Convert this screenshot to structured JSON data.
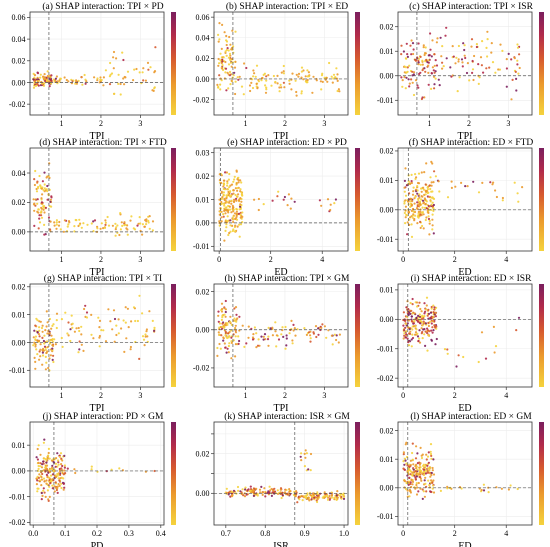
{
  "figure": {
    "colormap": [
      "#f5d33d",
      "#eb9a2d",
      "#d6592f",
      "#b12a4b",
      "#7b1f5e"
    ],
    "zero_line_color": "#555555",
    "grid": true,
    "point_size": "small dots colored by interacting feature value"
  },
  "chart_data": [
    {
      "type": "scatter",
      "title": "(a)  SHAP interaction: TPI × PD",
      "xlabel": "TPI",
      "xlim": [
        0.2,
        3.6
      ],
      "ylim": [
        -0.03,
        0.065
      ],
      "xticks": [
        1,
        2,
        3
      ],
      "yticks": [
        -0.02,
        0.0,
        0.02,
        0.04,
        0.06
      ],
      "ytick_labels": [
        "-0.02",
        "0.00",
        "0.02",
        "0.04",
        "0.06"
      ],
      "vline": 0.68,
      "clusters": [
        {
          "x": [
            0.28,
            0.75
          ],
          "y": [
            -0.008,
            0.012
          ],
          "n": 90,
          "hi": 0.25
        },
        {
          "x": [
            0.8,
            2.0
          ],
          "y": [
            -0.004,
            0.008
          ],
          "n": 40,
          "hi": 0.1
        },
        {
          "x": [
            2.0,
            3.4
          ],
          "y": [
            -0.022,
            0.04
          ],
          "n": 45,
          "hi": 0.08
        }
      ]
    },
    {
      "type": "scatter",
      "title": "(b)  SHAP interaction: TPI × ED",
      "xlabel": "TPI",
      "xlim": [
        0.2,
        3.6
      ],
      "ylim": [
        -0.035,
        0.065
      ],
      "xticks": [
        1,
        2,
        3
      ],
      "yticks": [
        -0.02,
        0.0,
        0.02,
        0.04,
        0.06
      ],
      "ytick_labels": [
        "-0.02",
        "0.00",
        "0.02",
        "0.04",
        "0.06"
      ],
      "vline": 0.68,
      "clusters": [
        {
          "x": [
            0.28,
            0.75
          ],
          "y": [
            -0.028,
            0.06
          ],
          "n": 90,
          "hi": 0.2
        },
        {
          "x": [
            0.8,
            3.4
          ],
          "y": [
            -0.02,
            0.018
          ],
          "n": 110,
          "hi": 0.04
        }
      ]
    },
    {
      "type": "scatter",
      "title": "(c)  SHAP interaction: TPI × ISR",
      "xlabel": "TPI",
      "xlim": [
        0.2,
        3.6
      ],
      "ylim": [
        -0.016,
        0.026
      ],
      "xticks": [
        1,
        2,
        3
      ],
      "yticks": [
        -0.01,
        0.0,
        0.01,
        0.02
      ],
      "ytick_labels": [
        "-0.01",
        "0.00",
        "0.01",
        "0.02"
      ],
      "vline": 0.68,
      "clusters": [
        {
          "x": [
            0.28,
            1.2
          ],
          "y": [
            -0.012,
            0.02
          ],
          "n": 110,
          "hi": 0.5
        },
        {
          "x": [
            1.2,
            3.3
          ],
          "y": [
            -0.013,
            0.024
          ],
          "n": 90,
          "hi": 0.35
        }
      ]
    },
    {
      "type": "scatter",
      "title": "(d)  SHAP interaction: TPI × FTD",
      "xlabel": "TPI",
      "xlim": [
        0.2,
        3.6
      ],
      "ylim": [
        -0.013,
        0.057
      ],
      "xticks": [
        1,
        2,
        3
      ],
      "yticks": [
        0.0,
        0.02,
        0.04
      ],
      "ytick_labels": [
        "0.00",
        "0.02",
        "0.04"
      ],
      "vline": 0.68,
      "clusters": [
        {
          "x": [
            0.28,
            0.75
          ],
          "y": [
            -0.01,
            0.052
          ],
          "n": 90,
          "hi": 0.3
        },
        {
          "x": [
            0.8,
            3.4
          ],
          "y": [
            -0.006,
            0.014
          ],
          "n": 90,
          "hi": 0.08
        }
      ]
    },
    {
      "type": "scatter",
      "title": "(e)  SHAP interaction: ED × PD",
      "xlabel": "ED",
      "xlim": [
        -0.2,
        5.0
      ],
      "ylim": [
        -0.012,
        0.032
      ],
      "xticks": [
        0,
        2,
        4
      ],
      "yticks": [
        -0.01,
        0.0,
        0.01,
        0.02,
        0.03
      ],
      "ytick_labels": [
        "-0.01",
        "0.00",
        "0.01",
        "0.02",
        "0.03"
      ],
      "vline": 0.05,
      "clusters": [
        {
          "x": [
            0.0,
            0.9
          ],
          "y": [
            -0.01,
            0.028
          ],
          "n": 220,
          "hi": 0.04
        },
        {
          "x": [
            1.0,
            4.6
          ],
          "y": [
            0.004,
            0.015
          ],
          "n": 22,
          "hi": 0.35
        }
      ]
    },
    {
      "type": "scatter",
      "title": "(f)  SHAP interaction: ED × FTD",
      "xlabel": "ED",
      "xlim": [
        -0.2,
        5.0
      ],
      "ylim": [
        -0.014,
        0.021
      ],
      "xticks": [
        0,
        2,
        4
      ],
      "yticks": [
        -0.01,
        0.0,
        0.01,
        0.02
      ],
      "ytick_labels": [
        "-0.01",
        "0.00",
        "0.01",
        "0.02"
      ],
      "vline": 0.2,
      "clusters": [
        {
          "x": [
            0.05,
            1.2
          ],
          "y": [
            -0.012,
            0.018
          ],
          "n": 220,
          "hi": 0.18
        },
        {
          "x": [
            1.2,
            4.7
          ],
          "y": [
            0.0,
            0.015
          ],
          "n": 25,
          "hi": 0.1
        }
      ]
    },
    {
      "type": "scatter",
      "title": "(g)  SHAP interaction: TPI × TI",
      "xlabel": "TPI",
      "xlim": [
        0.2,
        3.6
      ],
      "ylim": [
        -0.016,
        0.021
      ],
      "xticks": [
        1,
        2,
        3
      ],
      "yticks": [
        -0.01,
        0.0,
        0.01,
        0.02
      ],
      "ytick_labels": [
        "-0.01",
        "0.00",
        "0.01",
        "0.02"
      ],
      "vline": 0.68,
      "clusters": [
        {
          "x": [
            0.28,
            0.8
          ],
          "y": [
            -0.014,
            0.014
          ],
          "n": 100,
          "hi": 0.2
        },
        {
          "x": [
            0.8,
            3.4
          ],
          "y": [
            -0.008,
            0.018
          ],
          "n": 90,
          "hi": 0.1
        }
      ]
    },
    {
      "type": "scatter",
      "title": "(h)  SHAP interaction: TPI × GM",
      "xlabel": "TPI",
      "xlim": [
        0.2,
        3.6
      ],
      "ylim": [
        -0.03,
        0.024
      ],
      "xticks": [
        1,
        2,
        3
      ],
      "yticks": [
        -0.02,
        0.0,
        0.02
      ],
      "ytick_labels": [
        "-0.02",
        "0.00",
        "0.02"
      ],
      "vline": 0.68,
      "clusters": [
        {
          "x": [
            0.28,
            0.8
          ],
          "y": [
            -0.02,
            0.02
          ],
          "n": 100,
          "hi": 0.25
        },
        {
          "x": [
            0.8,
            3.4
          ],
          "y": [
            -0.014,
            0.01
          ],
          "n": 90,
          "hi": 0.3
        }
      ]
    },
    {
      "type": "scatter",
      "title": "(i)  SHAP interaction: ED × ISR",
      "xlabel": "ED",
      "xlim": [
        -0.2,
        5.0
      ],
      "ylim": [
        -0.023,
        0.012
      ],
      "xticks": [
        0,
        2,
        4
      ],
      "yticks": [
        -0.02,
        -0.01,
        0.0,
        0.01
      ],
      "ytick_labels": [
        "-0.02",
        "-0.01",
        "0.00",
        "0.01"
      ],
      "vline": 0.18,
      "clusters": [
        {
          "x": [
            0.0,
            1.3
          ],
          "y": [
            -0.012,
            0.01
          ],
          "n": 220,
          "hi": 0.55
        },
        {
          "x": [
            1.3,
            4.6
          ],
          "y": [
            -0.02,
            0.003
          ],
          "n": 15,
          "hi": 0.4
        }
      ]
    },
    {
      "type": "scatter",
      "title": "(j)  SHAP interaction: PD × GM",
      "xlabel": "PD",
      "xlim": [
        -0.01,
        0.41
      ],
      "ylim": [
        -0.021,
        0.019
      ],
      "xticks": [
        0.0,
        0.1,
        0.2,
        0.3,
        0.4
      ],
      "yticks": [
        -0.02,
        -0.01,
        0.0,
        0.01
      ],
      "ytick_labels": [
        "-0.02",
        "-0.01",
        "0.00",
        "0.01"
      ],
      "vline": 0.065,
      "clusters": [
        {
          "x": [
            0.01,
            0.1
          ],
          "y": [
            -0.015,
            0.014
          ],
          "n": 200,
          "hi": 0.3
        },
        {
          "x": [
            0.1,
            0.39
          ],
          "y": [
            -0.003,
            0.004
          ],
          "n": 12,
          "hi": 0.2
        }
      ]
    },
    {
      "type": "scatter",
      "title": "(k)  SHAP interaction: ISR × GM",
      "xlabel": "ISR",
      "xlim": [
        0.67,
        1.01
      ],
      "ylim": [
        -0.016,
        0.036
      ],
      "xticks": [
        0.7,
        0.8,
        0.9,
        1.0
      ],
      "yticks": [
        0.0,
        0.01,
        0.02,
        0.03
      ],
      "ytick_labels": [
        "0.00",
        "",
        "0.02",
        ""
      ],
      "vline": 0.875,
      "clusters": [
        {
          "x": [
            0.7,
            0.875
          ],
          "y": [
            -0.003,
            0.004
          ],
          "n": 140,
          "hi": 0.35
        },
        {
          "x": [
            0.875,
            1.0
          ],
          "y": [
            -0.005,
            0.002
          ],
          "n": 120,
          "hi": 0.2
        },
        {
          "x": [
            0.88,
            0.92
          ],
          "y": [
            0.005,
            0.03
          ],
          "n": 12,
          "hi": 0.1
        }
      ]
    },
    {
      "type": "scatter",
      "title": "(l)  SHAP interaction: ED × GM",
      "xlabel": "ED",
      "xlim": [
        -0.2,
        5.0
      ],
      "ylim": [
        -0.013,
        0.023
      ],
      "xticks": [
        0,
        2,
        4
      ],
      "yticks": [
        -0.01,
        0.0,
        0.01,
        0.02
      ],
      "ytick_labels": [
        "-0.01",
        "0.00",
        "0.01",
        "0.02"
      ],
      "vline": 0.18,
      "clusters": [
        {
          "x": [
            0.0,
            1.2
          ],
          "y": [
            -0.008,
            0.018
          ],
          "n": 200,
          "hi": 0.3
        },
        {
          "x": [
            1.2,
            4.6
          ],
          "y": [
            -0.002,
            0.002
          ],
          "n": 20,
          "hi": 0.1
        }
      ]
    }
  ]
}
